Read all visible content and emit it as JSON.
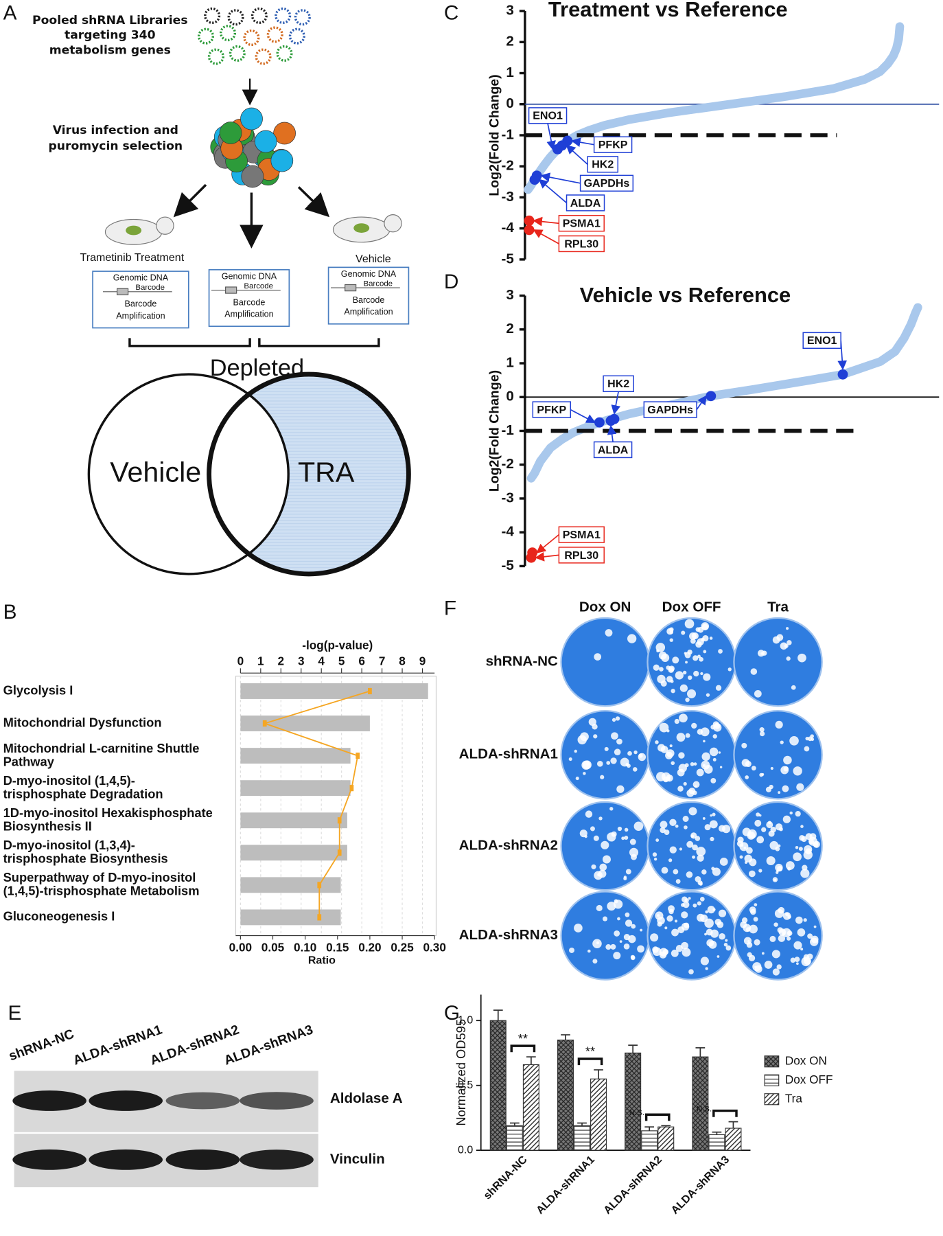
{
  "panel_labels": [
    "A",
    "B",
    "C",
    "D",
    "E",
    "F",
    "G"
  ],
  "screen_diagram": {
    "library": "Pooled shRNA Libraries\ntargeting 340\nmetabolism genes",
    "infection": "Virus infection and\npuromycin selection",
    "arms": [
      "Trametinib Treatment",
      "Vehicle"
    ],
    "boxes": [
      {
        "title": "Genomic DNA",
        "barcode": "Barcode",
        "amplification": "Barcode\nAmplification"
      },
      {
        "title": "Genomic DNA",
        "barcode": "Barcode",
        "amplification": "Barcode\nAmplification"
      },
      {
        "title": "Genomic DNA",
        "barcode": "Barcode",
        "amplification": "Barcode\nAmplification"
      }
    ],
    "depleted": "Depleted",
    "venn": [
      "Vehicle",
      "TRA"
    ]
  },
  "chart_data": [
    {
      "type": "bar",
      "orientation": "horizontal",
      "categories": [
        "Glycolysis I",
        "Mitochondrial Dysfunction",
        "Mitochondrial L-carnitine Shuttle\nPathway",
        "D-myo-inositol (1,4,5)-\ntrisphosphate Degradation",
        "1D-myo-inositol Hexakisphosphate\nBiosynthesis II",
        "D-myo-inositol (1,3,4)-\ntrisphosphate Biosynthesis",
        "Superpathway of D-myo-inositol\n(1,4,5)-trisphosphate Metabolism",
        "Gluconeogenesis I"
      ],
      "values": [
        0.29,
        0.2,
        0.17,
        0.17,
        0.165,
        0.165,
        0.155,
        0.155
      ],
      "color": "#bdbdbd",
      "xlabel": "Ratio",
      "xlim": [
        0,
        0.3
      ],
      "xticks": [
        {
          "value": 0,
          "label": "0.00"
        },
        {
          "value": 0.05,
          "label": "0.05"
        },
        {
          "value": 0.1,
          "label": "0.10"
        },
        {
          "value": 0.15,
          "label": "0.15"
        },
        {
          "value": 0.2,
          "label": "0.20"
        },
        {
          "value": 0.25,
          "label": "0.25"
        },
        {
          "value": 0.3,
          "label": "0.30"
        }
      ],
      "line_values": [
        6.4,
        1.2,
        5.8,
        5.5,
        4.9,
        4.9,
        3.9,
        3.9
      ],
      "line_color": "#f5a623",
      "x2label": "-log(p-value)",
      "x2lim": [
        0,
        9.6
      ],
      "x2ticks": [
        0,
        1,
        2,
        3,
        4,
        5,
        6,
        7,
        8,
        9
      ],
      "grid": true
    },
    {
      "type": "line",
      "title": "Treatment vs Reference",
      "ylabel": "Log2(Fold Change)",
      "x": [
        0,
        3,
        6,
        10,
        15,
        20,
        27,
        35,
        45,
        56,
        70,
        92,
        128,
        185,
        236,
        279,
        308,
        322,
        329,
        334,
        337,
        339,
        340
      ],
      "values": [
        -2.75,
        -2.6,
        -2.43,
        -2.2,
        -1.95,
        -1.72,
        -1.45,
        -1.2,
        -1.0,
        -0.84,
        -0.68,
        -0.5,
        -0.28,
        0,
        0.25,
        0.5,
        0.8,
        1.05,
        1.3,
        1.55,
        1.8,
        2.1,
        2.5
      ],
      "color": "#a9c8ec",
      "xlim": [
        0,
        340
      ],
      "ylim": [
        -5,
        3
      ],
      "yticks": [
        -5,
        -4,
        -3,
        -2,
        -1,
        0,
        1,
        2,
        3
      ],
      "zero_line_color": "#2a4aa0",
      "threshold": -1,
      "highlights": [
        {
          "name": "ENO1",
          "x": 27,
          "value": -1.45,
          "color": "#1f3fd6"
        },
        {
          "name": "PFKP",
          "x": 36,
          "value": -1.18,
          "color": "#1f3fd6"
        },
        {
          "name": "HK2",
          "x": 31,
          "value": -1.33,
          "color": "#1f3fd6"
        },
        {
          "name": "GAPDHs",
          "x": 8,
          "value": -2.3,
          "color": "#1f3fd6"
        },
        {
          "name": "ALDA",
          "x": 6,
          "value": -2.43,
          "color": "#1f3fd6"
        },
        {
          "name": "PSMA1",
          "x": 1,
          "value": -3.75,
          "color": "#e8261c"
        },
        {
          "name": "RPL30",
          "x": 1,
          "value": -4.05,
          "color": "#e8261c"
        }
      ]
    },
    {
      "type": "line",
      "title": "Vehicle vs Reference",
      "ylabel": "Log2(Fold Change)",
      "x": [
        0,
        3,
        8,
        17,
        27,
        37,
        48,
        60,
        86,
        120,
        158,
        196,
        245,
        274,
        307,
        320,
        328,
        334,
        338,
        340
      ],
      "values": [
        -2.4,
        -2.25,
        -1.9,
        -1.5,
        -1.25,
        -1.05,
        -0.9,
        -0.75,
        -0.5,
        -0.25,
        0.03,
        0.23,
        0.5,
        0.67,
        1.05,
        1.35,
        1.75,
        2.15,
        2.5,
        2.65
      ],
      "color": "#a9c8ec",
      "xlim": [
        0,
        340
      ],
      "ylim": [
        -5,
        3
      ],
      "yticks": [
        -5,
        -4,
        -3,
        -2,
        -1,
        0,
        1,
        2,
        3
      ],
      "zero_line_color": "#000000",
      "threshold": -1,
      "highlights": [
        {
          "name": "ENO1",
          "x": 274,
          "value": 0.67,
          "color": "#1f3fd6"
        },
        {
          "name": "PFKP",
          "x": 60,
          "value": -0.75,
          "color": "#1f3fd6"
        },
        {
          "name": "HK2",
          "x": 73,
          "value": -0.65,
          "color": "#1f3fd6"
        },
        {
          "name": "GAPDHs",
          "x": 158,
          "value": 0.03,
          "color": "#1f3fd6"
        },
        {
          "name": "ALDA",
          "x": 70,
          "value": -0.7,
          "color": "#1f3fd6"
        },
        {
          "name": "PSMA1",
          "x": 1,
          "value": -4.6,
          "color": "#e8261c"
        },
        {
          "name": "RPL30",
          "x": 0,
          "value": -4.75,
          "color": "#e8261c"
        }
      ]
    },
    {
      "type": "grouped_bar",
      "ylabel": "Normalized OD595",
      "categories": [
        "shRNA-NC",
        "ALDA-shRNA1",
        "ALDA-shRNA2",
        "ALDA-shRNA3"
      ],
      "series": [
        {
          "name": "Dox ON",
          "color": "#333333",
          "pattern": "crosshatch",
          "values": [
            1.0,
            0.85,
            0.75,
            0.72
          ],
          "errors": [
            0.08,
            0.04,
            0.06,
            0.07
          ]
        },
        {
          "name": "Dox OFF",
          "color": "#333333",
          "pattern": "horizontal",
          "values": [
            0.19,
            0.19,
            0.15,
            0.12
          ],
          "errors": [
            0.02,
            0.02,
            0.03,
            0.02
          ]
        },
        {
          "name": "Tra",
          "color": "#333333",
          "pattern": "diagonal",
          "values": [
            0.66,
            0.55,
            0.18,
            0.17
          ],
          "errors": [
            0.06,
            0.07,
            0.01,
            0.05
          ]
        }
      ],
      "ylim": [
        0,
        1.2
      ],
      "yticks": [
        {
          "value": 0,
          "label": "0.0"
        },
        0.5,
        {
          "value": 1,
          "label": "1.0"
        }
      ],
      "significance": [
        "**",
        "**",
        "N.S.",
        "N.S."
      ],
      "legend": "right"
    }
  ],
  "blot": {
    "lanes": [
      "shRNA-NC",
      "ALDA-shRNA1",
      "ALDA-shRNA2",
      "ALDA-shRNA3"
    ],
    "proteins": [
      "Aldolase A",
      "Vinculin"
    ]
  },
  "colony_assay": {
    "conditions": [
      "Dox ON",
      "Dox OFF",
      "Tra"
    ],
    "lines": [
      "shRNA-NC",
      "ALDA-shRNA1",
      "ALDA-shRNA2",
      "ALDA-shRNA3"
    ]
  }
}
